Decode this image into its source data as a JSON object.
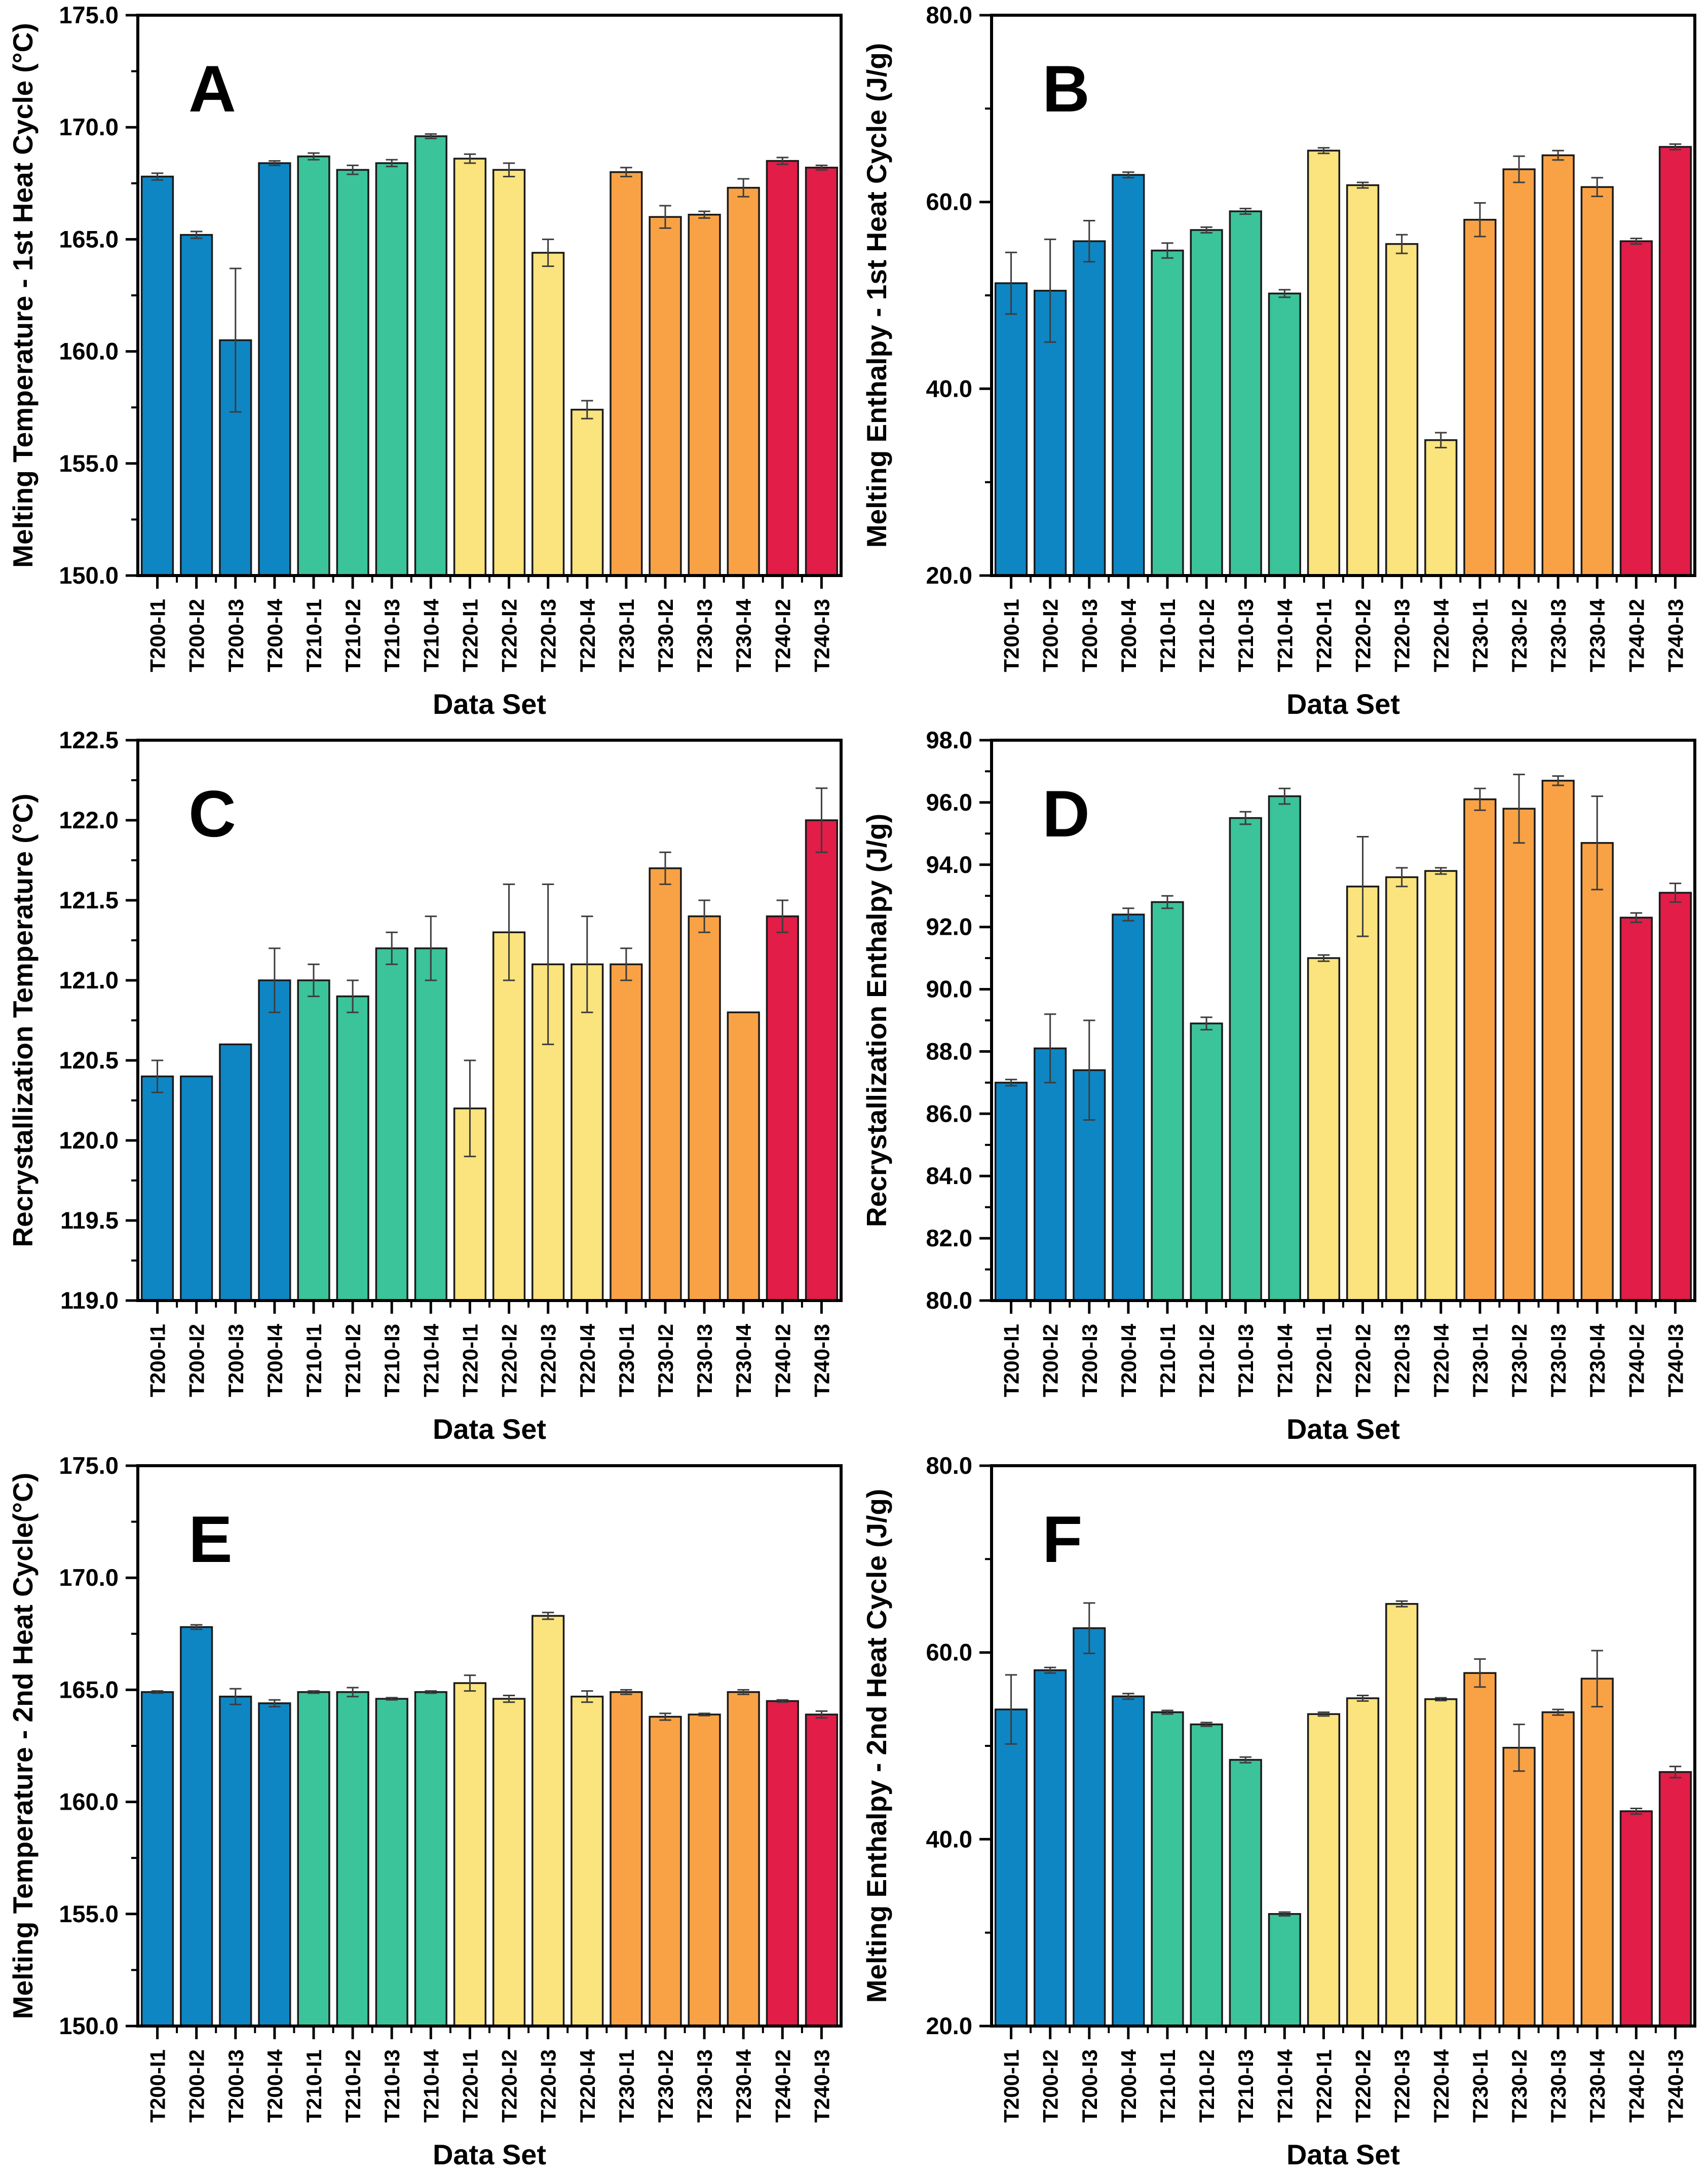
{
  "figure": {
    "x_axis_title": "Data Set",
    "panel_letters": [
      "A",
      "B",
      "C",
      "D",
      "E",
      "F"
    ]
  },
  "chart_data": {
    "type": "bar",
    "layout": "2x3-multi-panel",
    "grid": false,
    "legend": "none",
    "categories": [
      "T200-I1",
      "T200-I2",
      "T200-I3",
      "T200-I4",
      "T210-I1",
      "T210-I2",
      "T210-I3",
      "T210-I4",
      "T220-I1",
      "T220-I2",
      "T220-I3",
      "T220-I4",
      "T230-I1",
      "T230-I2",
      "T230-I3",
      "T230-I4",
      "T240-I2",
      "T240-I3"
    ],
    "bar_color_groups": [
      {
        "name": "T200",
        "count": 4,
        "color": "#0E86C4"
      },
      {
        "name": "T210",
        "count": 4,
        "color": "#3BC39A"
      },
      {
        "name": "T220",
        "count": 4,
        "color": "#FBE37D"
      },
      {
        "name": "T230",
        "count": 4,
        "color": "#F9A245"
      },
      {
        "name": "T240",
        "count": 2,
        "color": "#E11D48"
      }
    ],
    "bar_stroke_color": "#1a1a1a",
    "error_bar_color": "#3d3d3d",
    "axis_color": "#000000",
    "xlabel": "Data Set",
    "panels": [
      {
        "id": "A",
        "ylabel": "Melting Temperature - 1st Heat Cycle (°C)",
        "ylim": [
          150.0,
          175.0
        ],
        "ytick_step": 5.0,
        "ytick_decimals": 1,
        "values": [
          167.8,
          165.2,
          160.5,
          168.4,
          168.7,
          168.1,
          168.4,
          169.6,
          168.6,
          168.1,
          164.4,
          157.4,
          168.0,
          166.0,
          166.1,
          167.3,
          168.5,
          168.2
        ],
        "errors": [
          0.15,
          0.15,
          3.2,
          0.1,
          0.15,
          0.2,
          0.15,
          0.1,
          0.2,
          0.3,
          0.6,
          0.4,
          0.2,
          0.5,
          0.15,
          0.4,
          0.15,
          0.1
        ]
      },
      {
        "id": "B",
        "ylabel": "Melting Enthalpy - 1st Heat Cycle (J/g)",
        "ylim": [
          20.0,
          80.0
        ],
        "ytick_step": 20.0,
        "ytick_decimals": 1,
        "values": [
          51.3,
          50.5,
          55.8,
          62.9,
          54.8,
          57.0,
          59.0,
          50.2,
          65.5,
          61.8,
          55.5,
          34.5,
          58.1,
          63.5,
          65.0,
          61.6,
          55.8,
          65.9
        ],
        "errors": [
          3.3,
          5.5,
          2.2,
          0.3,
          0.8,
          0.3,
          0.3,
          0.4,
          0.3,
          0.3,
          1.0,
          0.8,
          1.8,
          1.4,
          0.5,
          1.0,
          0.3,
          0.3
        ]
      },
      {
        "id": "C",
        "ylabel": "Recrystallization Temperature (°C)",
        "ylim": [
          119.0,
          122.5
        ],
        "ytick_step": 0.5,
        "ytick_decimals": 1,
        "values": [
          120.4,
          120.4,
          120.6,
          121.0,
          121.0,
          120.9,
          121.2,
          121.2,
          120.2,
          121.3,
          121.1,
          121.1,
          121.1,
          121.7,
          121.4,
          120.8,
          121.4,
          122.0
        ],
        "errors": [
          0.1,
          0,
          0,
          0.2,
          0.1,
          0.1,
          0.1,
          0.2,
          0.3,
          0.3,
          0.5,
          0.3,
          0.1,
          0.1,
          0.1,
          0,
          0.1,
          0.2
        ]
      },
      {
        "id": "D",
        "ylabel": "Recrystallization Enthalpy (J/g)",
        "ylim": [
          80.0,
          98.0
        ],
        "ytick_step": 2.0,
        "ytick_decimals": 1,
        "values": [
          87.0,
          88.1,
          87.4,
          92.4,
          92.8,
          88.9,
          95.5,
          96.2,
          91.0,
          93.3,
          93.6,
          93.8,
          96.1,
          95.8,
          96.7,
          94.7,
          92.3,
          93.1
        ],
        "errors": [
          0.1,
          1.1,
          1.6,
          0.2,
          0.2,
          0.2,
          0.2,
          0.25,
          0.1,
          1.6,
          0.3,
          0.1,
          0.35,
          1.1,
          0.15,
          1.5,
          0.15,
          0.3
        ]
      },
      {
        "id": "E",
        "ylabel": "Melting Temperature - 2nd Heat Cycle(°C)",
        "ylim": [
          150.0,
          175.0
        ],
        "ytick_step": 5.0,
        "ytick_decimals": 1,
        "values": [
          164.9,
          167.8,
          164.7,
          164.4,
          164.9,
          164.9,
          164.6,
          164.9,
          165.3,
          164.6,
          168.3,
          164.7,
          164.9,
          163.8,
          163.9,
          164.9,
          164.5,
          163.9
        ],
        "errors": [
          0.05,
          0.1,
          0.35,
          0.15,
          0.05,
          0.2,
          0.05,
          0.05,
          0.35,
          0.15,
          0.15,
          0.25,
          0.1,
          0.15,
          0.05,
          0.1,
          0.05,
          0.15
        ]
      },
      {
        "id": "F",
        "ylabel": "Melting Enthalpy - 2nd Heat Cycle (J/g)",
        "ylim": [
          20.0,
          80.0
        ],
        "ytick_step": 20.0,
        "ytick_decimals": 1,
        "values": [
          53.9,
          58.1,
          62.6,
          55.3,
          53.6,
          52.3,
          48.5,
          32.0,
          53.4,
          55.1,
          65.2,
          55.0,
          57.8,
          49.8,
          53.6,
          57.2,
          43.0,
          47.2
        ],
        "errors": [
          3.7,
          0.3,
          2.7,
          0.3,
          0.2,
          0.2,
          0.3,
          0.2,
          0.2,
          0.3,
          0.3,
          0.15,
          1.5,
          2.5,
          0.3,
          3.0,
          0.3,
          0.6
        ]
      }
    ]
  }
}
